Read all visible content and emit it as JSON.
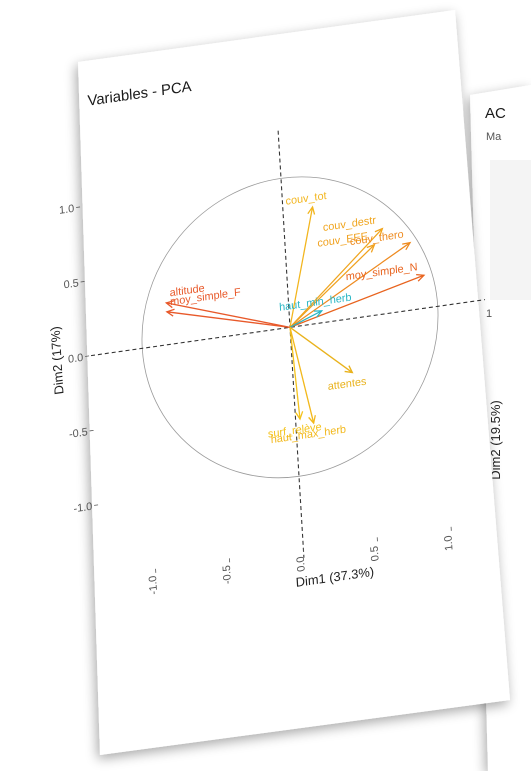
{
  "chart_data": [
    {
      "type": "scatter",
      "title": "Variables - PCA",
      "xlabel": "Dim1 (37.3%)",
      "ylabel": "Dim2 (17%)",
      "xlim": [
        -1.0,
        1.0
      ],
      "ylim": [
        -1.0,
        1.0
      ],
      "x_ticks": [
        "-1.0",
        "-0.5",
        "0.0",
        "0.5",
        "1.0"
      ],
      "y_ticks": [
        "1.0",
        "0.5",
        "0.0",
        "-0.5",
        "-1.0"
      ],
      "grid": false,
      "variables": [
        {
          "name": "couv_tot",
          "x": 0.2,
          "y": 0.78,
          "color": "#f2b51d"
        },
        {
          "name": "couv_destr",
          "x": 0.66,
          "y": 0.57,
          "color": "#f0a51e"
        },
        {
          "name": "couv_EEE",
          "x": 0.6,
          "y": 0.47,
          "color": "#f0a11e"
        },
        {
          "name": "couv_thero",
          "x": 0.84,
          "y": 0.45,
          "color": "#ee8a1f"
        },
        {
          "name": "moy_simple_N",
          "x": 0.92,
          "y": 0.22,
          "color": "#e8631e"
        },
        {
          "name": "altitude",
          "x": -0.82,
          "y": 0.28,
          "color": "#e8592a"
        },
        {
          "name": "moy_simple_F",
          "x": -0.82,
          "y": 0.22,
          "color": "#e8592a"
        },
        {
          "name": "haut_min_herb",
          "x": 0.22,
          "y": 0.08,
          "color": "#29b6c4"
        },
        {
          "name": "attentes",
          "x": 0.4,
          "y": -0.36,
          "color": "#e9b21c"
        },
        {
          "name": "surf_relève",
          "x": 0.03,
          "y": -0.62,
          "color": "#f4c21a"
        },
        {
          "name": "haut_max_herb",
          "x": 0.12,
          "y": -0.66,
          "color": "#f2b81b"
        }
      ]
    },
    {
      "type": "scatter",
      "title": "AC",
      "subtitle": "Ma",
      "ylabel": "Dim2 (19.5%)",
      "y_ticks": [
        "1"
      ]
    }
  ]
}
